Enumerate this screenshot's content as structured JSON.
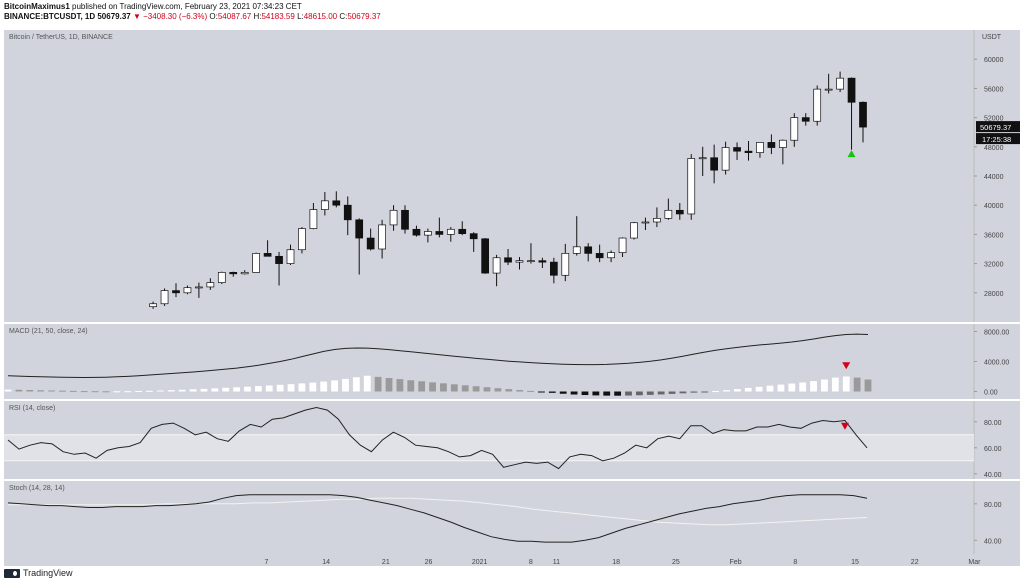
{
  "header": {
    "author": "BitcoinMaximus1",
    "published": "published on TradingView.com, February 23, 2021 07:34:23 CET",
    "symbol": "BINANCE:BTCUSDT, 1D",
    "last": "50679.37",
    "change": "▼ −3408.30 (−6.3%)",
    "o_label": "O:",
    "o": "54087.67",
    "h_label": "H:",
    "h": "54183.59",
    "l_label": "L:",
    "l": "48615.00",
    "c_label": "C:",
    "c": "50679.37"
  },
  "footer": {
    "brand": "TradingView"
  },
  "colors": {
    "panel_bg": "#d1d4dc",
    "bull": "#ffffff",
    "bear": "#111111",
    "wick": "#111111",
    "line": "#222222",
    "stoch_d": "#f2f2f2",
    "up_arrow": "#16c40f",
    "down_arrow": "#d0021b",
    "rsi_band": "#e0e2e8"
  },
  "chart_data": [
    {
      "type": "candlestick",
      "title": "Bitcoin / TetherUS, 1D, BINANCE",
      "ylabel": "USDT",
      "ylim": [
        24000,
        64000
      ],
      "yticks": [
        28000,
        32000,
        36000,
        40000,
        44000,
        48000,
        52000,
        56000,
        60000
      ],
      "price_label": "50679.37",
      "countdown_label": "17:25:38",
      "x_tick_labels": [
        "7",
        "14",
        "21",
        "26",
        "2021",
        "8",
        "11",
        "18",
        "25",
        "Feb",
        "8",
        "15",
        "22",
        "Mar"
      ],
      "candles": [
        {
          "o": 26100,
          "h": 26800,
          "l": 25800,
          "c": 26500
        },
        {
          "o": 26500,
          "h": 28600,
          "l": 26200,
          "c": 28300
        },
        {
          "o": 28300,
          "h": 29300,
          "l": 27400,
          "c": 28000
        },
        {
          "o": 28000,
          "h": 29000,
          "l": 27800,
          "c": 28700
        },
        {
          "o": 28700,
          "h": 29400,
          "l": 27300,
          "c": 28800
        },
        {
          "o": 28800,
          "h": 30000,
          "l": 28400,
          "c": 29400
        },
        {
          "o": 29400,
          "h": 30900,
          "l": 29200,
          "c": 30800
        },
        {
          "o": 30800,
          "h": 30900,
          "l": 30200,
          "c": 30600
        },
        {
          "o": 30600,
          "h": 31100,
          "l": 30500,
          "c": 30800
        },
        {
          "o": 30800,
          "h": 33500,
          "l": 30800,
          "c": 33400
        },
        {
          "o": 33400,
          "h": 35200,
          "l": 33300,
          "c": 33000
        },
        {
          "o": 33000,
          "h": 33600,
          "l": 29000,
          "c": 32000
        },
        {
          "o": 32000,
          "h": 34600,
          "l": 31800,
          "c": 33900
        },
        {
          "o": 33900,
          "h": 37000,
          "l": 33400,
          "c": 36800
        },
        {
          "o": 36800,
          "h": 40300,
          "l": 36700,
          "c": 39400
        },
        {
          "o": 39400,
          "h": 41800,
          "l": 38600,
          "c": 40600
        },
        {
          "o": 40600,
          "h": 41900,
          "l": 39700,
          "c": 40000
        },
        {
          "o": 40000,
          "h": 41200,
          "l": 35900,
          "c": 38000
        },
        {
          "o": 38000,
          "h": 38200,
          "l": 30500,
          "c": 35500
        },
        {
          "o": 35500,
          "h": 36800,
          "l": 33800,
          "c": 34000
        },
        {
          "o": 34000,
          "h": 38000,
          "l": 32700,
          "c": 37300
        },
        {
          "o": 37300,
          "h": 40000,
          "l": 36500,
          "c": 39300
        },
        {
          "o": 39300,
          "h": 40000,
          "l": 36100,
          "c": 36700
        },
        {
          "o": 36700,
          "h": 37200,
          "l": 35700,
          "c": 35900
        },
        {
          "o": 35900,
          "h": 36800,
          "l": 34900,
          "c": 36400
        },
        {
          "o": 36400,
          "h": 38300,
          "l": 35600,
          "c": 36000
        },
        {
          "o": 36000,
          "h": 37000,
          "l": 35000,
          "c": 36700
        },
        {
          "o": 36700,
          "h": 37800,
          "l": 35900,
          "c": 36100
        },
        {
          "o": 36100,
          "h": 36300,
          "l": 33600,
          "c": 35400
        },
        {
          "o": 35400,
          "h": 35500,
          "l": 30600,
          "c": 30700
        },
        {
          "o": 30700,
          "h": 33200,
          "l": 28900,
          "c": 32800
        },
        {
          "o": 32800,
          "h": 34000,
          "l": 31800,
          "c": 32200
        },
        {
          "o": 32200,
          "h": 32900,
          "l": 31200,
          "c": 32400
        },
        {
          "o": 32400,
          "h": 34800,
          "l": 32000,
          "c": 32400
        },
        {
          "o": 32400,
          "h": 32800,
          "l": 31400,
          "c": 32200
        },
        {
          "o": 32200,
          "h": 32800,
          "l": 29300,
          "c": 30400
        },
        {
          "o": 30400,
          "h": 34700,
          "l": 29600,
          "c": 33400
        },
        {
          "o": 33400,
          "h": 38500,
          "l": 33100,
          "c": 34300
        },
        {
          "o": 34300,
          "h": 34800,
          "l": 32300,
          "c": 33400
        },
        {
          "o": 33400,
          "h": 34600,
          "l": 32200,
          "c": 32800
        },
        {
          "o": 32800,
          "h": 33800,
          "l": 32200,
          "c": 33500
        },
        {
          "o": 33500,
          "h": 35600,
          "l": 32900,
          "c": 35500
        },
        {
          "o": 35500,
          "h": 37700,
          "l": 35300,
          "c": 37600
        },
        {
          "o": 37600,
          "h": 38300,
          "l": 36600,
          "c": 37700
        },
        {
          "o": 37700,
          "h": 39700,
          "l": 37000,
          "c": 38200
        },
        {
          "o": 38200,
          "h": 40900,
          "l": 38000,
          "c": 39300
        },
        {
          "o": 39300,
          "h": 40300,
          "l": 38000,
          "c": 38800
        },
        {
          "o": 38800,
          "h": 47000,
          "l": 38000,
          "c": 46400
        },
        {
          "o": 46400,
          "h": 48000,
          "l": 44000,
          "c": 46500
        },
        {
          "o": 46500,
          "h": 48300,
          "l": 43000,
          "c": 44800
        },
        {
          "o": 44800,
          "h": 48700,
          "l": 44200,
          "c": 47900
        },
        {
          "o": 47900,
          "h": 48600,
          "l": 46200,
          "c": 47400
        },
        {
          "o": 47400,
          "h": 48800,
          "l": 46100,
          "c": 47200
        },
        {
          "o": 47200,
          "h": 48600,
          "l": 46500,
          "c": 48600
        },
        {
          "o": 48600,
          "h": 49700,
          "l": 47000,
          "c": 47900
        },
        {
          "o": 47900,
          "h": 49000,
          "l": 45600,
          "c": 48900
        },
        {
          "o": 48900,
          "h": 52600,
          "l": 48000,
          "c": 52000
        },
        {
          "o": 52000,
          "h": 52600,
          "l": 50900,
          "c": 51500
        },
        {
          "o": 51500,
          "h": 56400,
          "l": 50900,
          "c": 55900
        },
        {
          "o": 55900,
          "h": 58000,
          "l": 55300,
          "c": 55900
        },
        {
          "o": 55900,
          "h": 58300,
          "l": 55500,
          "c": 57400
        },
        {
          "o": 57400,
          "h": 57500,
          "l": 47600,
          "c": 54100
        },
        {
          "o": 54100,
          "h": 54200,
          "l": 48600,
          "c": 50700
        }
      ],
      "markers": [
        {
          "type": "up-arrow",
          "index": 61,
          "value": 47000
        }
      ]
    },
    {
      "type": "macd",
      "title": "MACD (21, 50, close, 24)",
      "ylim": [
        -1000,
        9000
      ],
      "yticks": [
        0,
        4000,
        8000
      ],
      "macd": [
        2100,
        2050,
        2000,
        1960,
        1930,
        1900,
        1880,
        1870,
        1880,
        1910,
        1960,
        2020,
        2100,
        2200,
        2300,
        2400,
        2500,
        2600,
        2720,
        2850,
        2980,
        3120,
        3300,
        3500,
        3750,
        4000,
        4300,
        4650,
        5000,
        5350,
        5600,
        5750,
        5800,
        5780,
        5700,
        5580,
        5440,
        5300,
        5150,
        5000,
        4850,
        4700,
        4560,
        4420,
        4290,
        4160,
        4040,
        3940,
        3850,
        3770,
        3700,
        3640,
        3600,
        3580,
        3590,
        3620,
        3680,
        3760,
        3880,
        4030,
        4220,
        4450,
        4700,
        4980,
        5260,
        5500,
        5700,
        5880,
        6050,
        6200,
        6320,
        6450,
        6600,
        6780,
        7000,
        7250,
        7450,
        7600,
        7650,
        7600
      ],
      "histogram": [
        250,
        230,
        200,
        170,
        140,
        110,
        80,
        55,
        40,
        30,
        30,
        40,
        60,
        90,
        130,
        180,
        230,
        290,
        350,
        420,
        490,
        560,
        640,
        720,
        800,
        890,
        980,
        1080,
        1190,
        1320,
        1480,
        1680,
        1900,
        2100,
        1950,
        1800,
        1650,
        1500,
        1360,
        1220,
        1090,
        960,
        830,
        700,
        570,
        440,
        320,
        200,
        80,
        -50,
        -180,
        -300,
        -400,
        -470,
        -520,
        -550,
        -560,
        -540,
        -500,
        -450,
        -390,
        -320,
        -240,
        -150,
        -50,
        60,
        180,
        320,
        470,
        620,
        780,
        920,
        1060,
        1200,
        1380,
        1600,
        1850,
        2000,
        1850,
        1600
      ],
      "marker": {
        "type": "down-arrow",
        "index": 77,
        "value": 3500
      }
    },
    {
      "type": "rsi",
      "title": "RSI (14, close)",
      "ylim": [
        36,
        96
      ],
      "yticks": [
        40,
        60,
        80
      ],
      "bands": [
        50,
        70
      ],
      "values": [
        66,
        59,
        62,
        64,
        63,
        57,
        55,
        56,
        52,
        58,
        60,
        61,
        64,
        75,
        78,
        79,
        75,
        70,
        72,
        67,
        65,
        73,
        78,
        76,
        82,
        83,
        86,
        89,
        91,
        89,
        82,
        70,
        62,
        57,
        66,
        72,
        68,
        62,
        61,
        60,
        57,
        53,
        54,
        58,
        55,
        45,
        47,
        49,
        48,
        49,
        44,
        53,
        55,
        54,
        50,
        52,
        56,
        62,
        60,
        67,
        69,
        67,
        77,
        77,
        71,
        74,
        73,
        73,
        76,
        76,
        78,
        76,
        75,
        79,
        81,
        80,
        81,
        70,
        60
      ],
      "marker": {
        "type": "down-arrow",
        "index": 76,
        "value": 77
      }
    },
    {
      "type": "stochastic",
      "title": "Stoch (14, 28, 14)",
      "ylim": [
        25,
        105
      ],
      "yticks": [
        40,
        80
      ],
      "k": [
        81,
        80,
        79,
        78,
        78,
        77,
        76,
        76,
        77,
        77,
        77,
        78,
        78,
        79,
        80,
        82,
        86,
        89,
        90,
        90,
        90,
        90,
        90,
        90,
        90,
        89,
        87,
        84,
        81,
        78,
        74,
        70,
        65,
        60,
        54,
        49,
        44,
        41,
        39,
        39,
        38,
        38,
        38,
        40,
        43,
        48,
        53,
        57,
        61,
        65,
        69,
        72,
        75,
        77,
        80,
        82,
        84,
        87,
        89,
        90,
        90,
        90,
        90,
        89,
        86
      ],
      "d": [
        79,
        79,
        79,
        79,
        79,
        79,
        79,
        79,
        79,
        80,
        80,
        80,
        80,
        80,
        81,
        81,
        82,
        83,
        84,
        85,
        85,
        86,
        86,
        86,
        85,
        84,
        83,
        81,
        79,
        77,
        74,
        72,
        70,
        68,
        66,
        64,
        62,
        60,
        59,
        58,
        57,
        57,
        58,
        59,
        60,
        61,
        62,
        63,
        64,
        65
      ]
    }
  ]
}
